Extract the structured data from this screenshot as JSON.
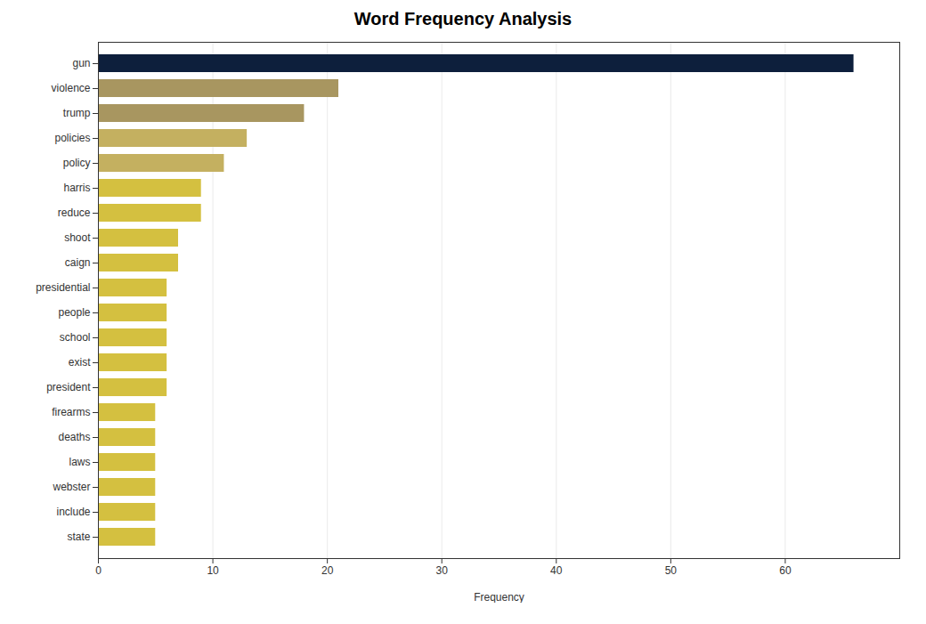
{
  "chart_data": {
    "type": "bar",
    "orientation": "horizontal",
    "title": "Word Frequency Analysis",
    "xlabel": "Frequency",
    "categories": [
      "gun",
      "violence",
      "trump",
      "policies",
      "policy",
      "harris",
      "reduce",
      "shoot",
      "caign",
      "presidential",
      "people",
      "school",
      "exist",
      "president",
      "firearms",
      "deaths",
      "laws",
      "webster",
      "include",
      "state"
    ],
    "values": [
      66,
      21,
      18,
      13,
      11,
      9,
      9,
      7,
      7,
      6,
      6,
      6,
      6,
      6,
      5,
      5,
      5,
      5,
      5,
      5
    ],
    "colors": [
      "#0d1f3c",
      "#a89660",
      "#a89660",
      "#c4b060",
      "#c4b060",
      "#d4c040",
      "#d4c040",
      "#d4c040",
      "#d4c040",
      "#d4c040",
      "#d4c040",
      "#d4c040",
      "#d4c040",
      "#d4c040",
      "#d4c040",
      "#d4c040",
      "#d4c040",
      "#d4c040",
      "#d4c040",
      "#d4c040"
    ],
    "xlim": [
      0,
      70
    ],
    "xticks": [
      0,
      10,
      20,
      30,
      40,
      50,
      60
    ],
    "grid": true
  }
}
